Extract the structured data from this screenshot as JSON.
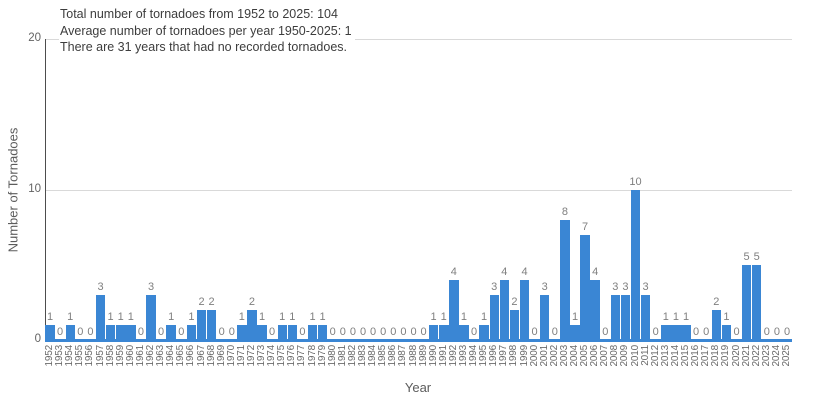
{
  "chart_data": {
    "type": "bar",
    "annotation_lines": [
      "Total number of tornadoes from 1952 to 2025: 104",
      "Average number of tornadoes per year 1950-2025: 1",
      "There are 31 years that had no recorded tornadoes."
    ],
    "categories": [
      1952,
      1953,
      1954,
      1955,
      1956,
      1957,
      1958,
      1959,
      1960,
      1961,
      1962,
      1963,
      1964,
      1965,
      1966,
      1967,
      1968,
      1969,
      1970,
      1971,
      1972,
      1973,
      1974,
      1975,
      1976,
      1977,
      1978,
      1979,
      1980,
      1981,
      1982,
      1983,
      1984,
      1985,
      1986,
      1987,
      1988,
      1989,
      1990,
      1991,
      1992,
      1993,
      1994,
      1995,
      1996,
      1997,
      1998,
      1999,
      2000,
      2001,
      2002,
      2003,
      2004,
      2005,
      2006,
      2007,
      2008,
      2009,
      2010,
      2011,
      2012,
      2013,
      2014,
      2015,
      2016,
      2017,
      2018,
      2019,
      2020,
      2021,
      2022,
      2023,
      2024,
      2025
    ],
    "values": [
      1,
      0,
      1,
      0,
      0,
      3,
      1,
      1,
      1,
      0,
      3,
      0,
      1,
      0,
      1,
      2,
      2,
      0,
      0,
      1,
      2,
      1,
      0,
      1,
      1,
      0,
      1,
      1,
      0,
      0,
      0,
      0,
      0,
      0,
      0,
      0,
      0,
      0,
      1,
      1,
      4,
      1,
      0,
      1,
      3,
      4,
      2,
      4,
      0,
      3,
      0,
      8,
      1,
      7,
      4,
      0,
      3,
      3,
      10,
      3,
      0,
      1,
      1,
      1,
      0,
      0,
      2,
      1,
      0,
      5,
      5,
      0,
      0,
      0
    ],
    "value_labels_shown": true,
    "xlabel": "Year",
    "ylabel": "Number of Tornadoes",
    "ylim": [
      0,
      20
    ],
    "yticks": [
      0,
      10,
      20
    ],
    "grid": "horizontal",
    "legend": "none",
    "colors": {
      "bar": "#3a86d4",
      "gridline": "#d9d9d9",
      "axis_spine": "#4d4d4d",
      "annotation_text": "#3d3d3d",
      "tick_text": "#6b6b6b",
      "value_label_text": "#7f7f7f"
    }
  }
}
